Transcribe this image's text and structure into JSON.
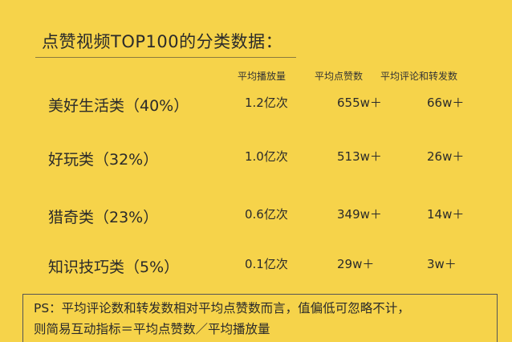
{
  "title": "点赞视频TOP100的分类数据：",
  "headers": [
    "平均播放量",
    "平均点赞数",
    "平均评论和转发数"
  ],
  "rows": [
    {
      "category": "美好生活类（40%）",
      "avg_views": "1.2亿次",
      "avg_likes": "655w＋",
      "avg_comments_shares": "66w＋"
    },
    {
      "category": "好玩类（32%）",
      "avg_views": "1.0亿次",
      "avg_likes": "513w＋",
      "avg_comments_shares": "26w＋"
    },
    {
      "category": "猎奇类（23%）",
      "avg_views": "0.6亿次",
      "avg_likes": "349w＋",
      "avg_comments_shares": "14w＋"
    },
    {
      "category": "知识技巧类（5%）",
      "avg_views": "0.1亿次",
      "avg_likes": "29w＋",
      "avg_comments_shares": "3w＋"
    }
  ],
  "ps": {
    "line1": "PS：平均评论数和转发数相对平均点赞数而言，值偏低可忽略不计，",
    "line2": "则简易互动指标＝平均点赞数／平均播放量"
  },
  "colors": {
    "background": "#f6d34a",
    "text": "#2a2a2a"
  }
}
